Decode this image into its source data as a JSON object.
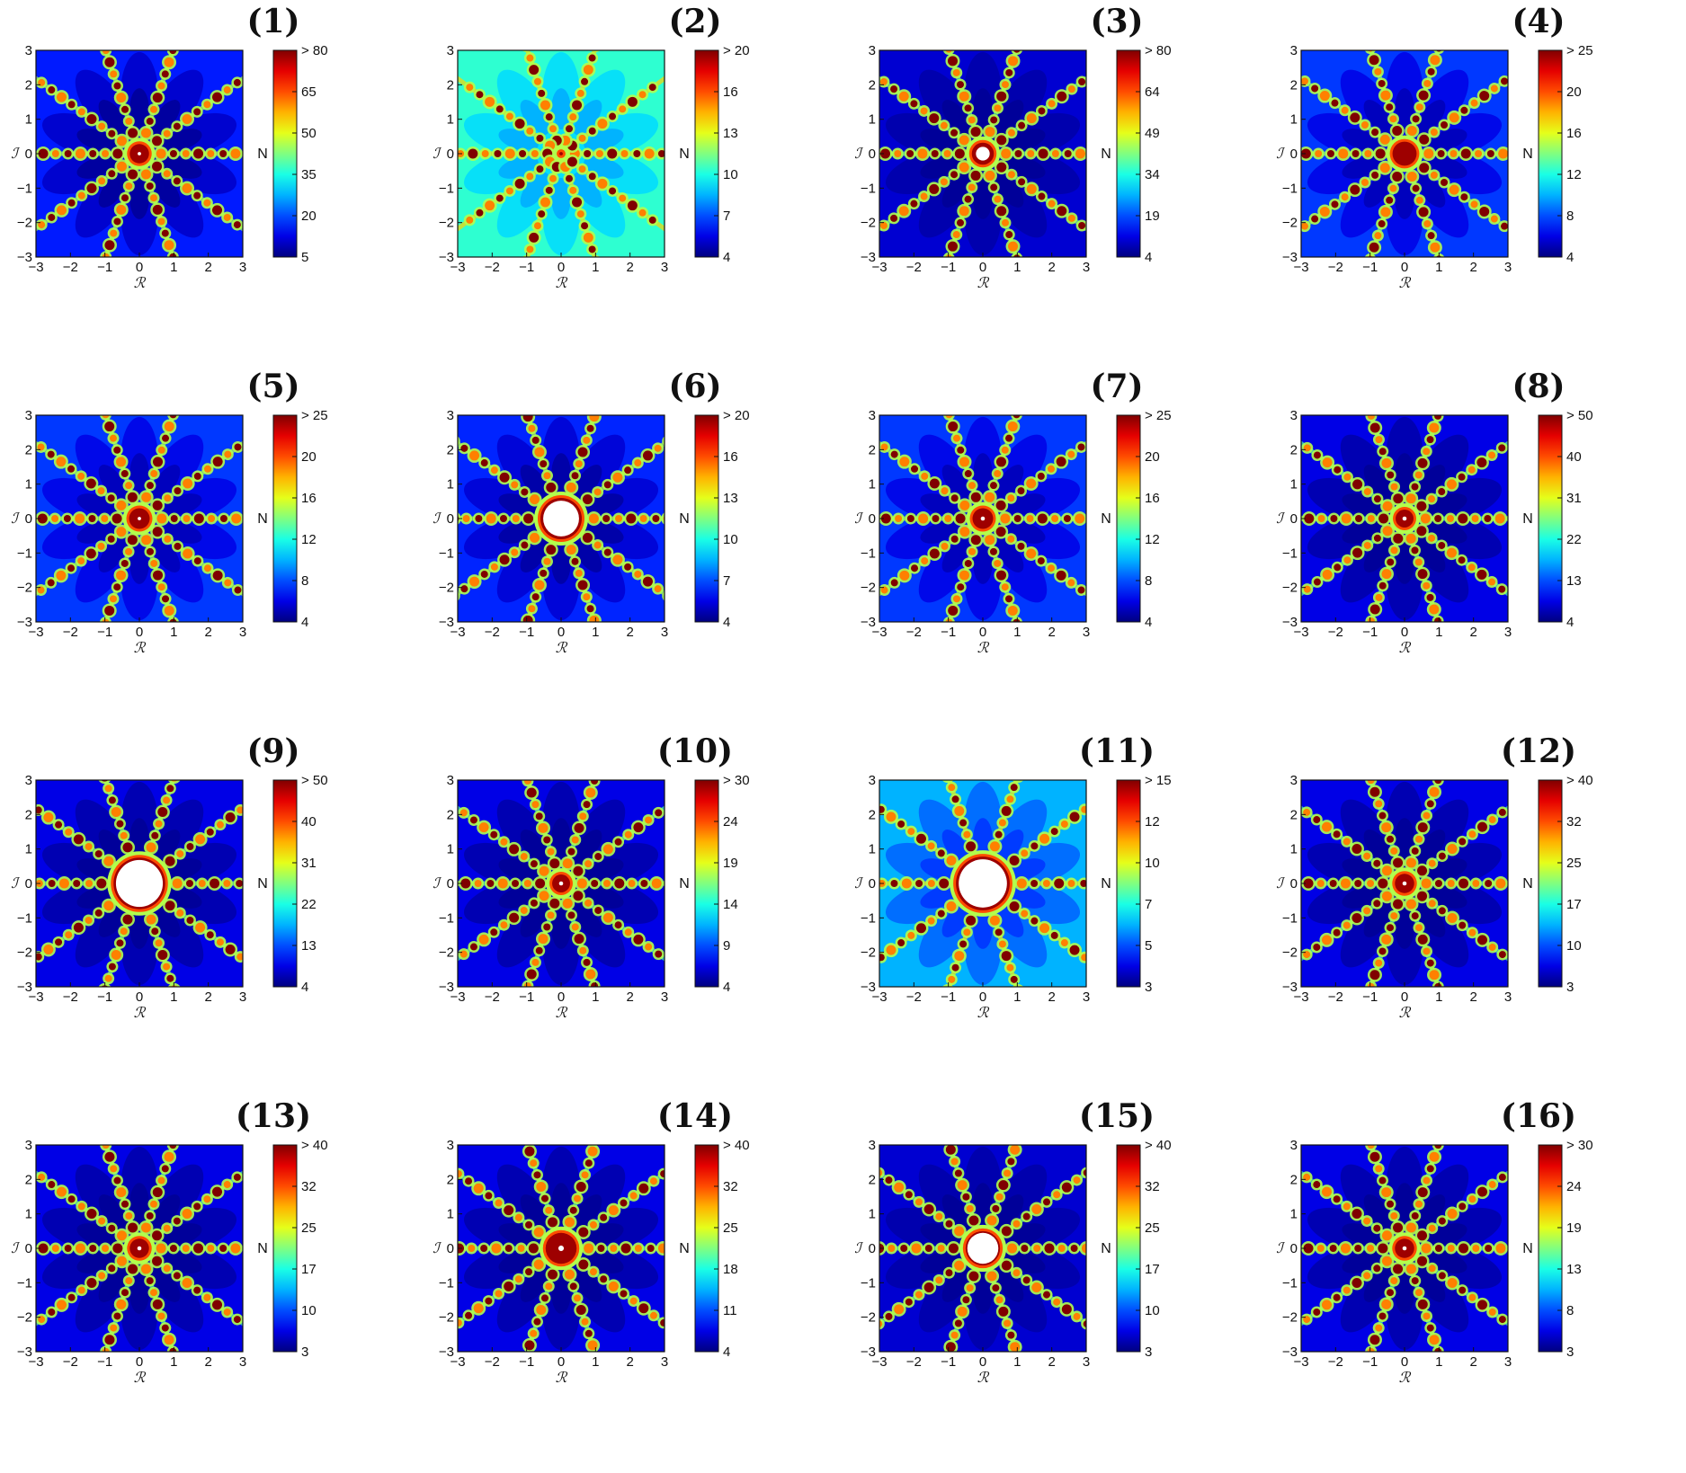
{
  "figure": {
    "xlabel": "ℛ",
    "ylabel": "ℐ",
    "colorbar_label": "N",
    "axis_ticks": [
      "−3",
      "−2",
      "−1",
      "0",
      "1",
      "2",
      "3"
    ]
  },
  "chart_data": [
    {
      "type": "heatmap",
      "title": "(1)",
      "xlim": [
        -3,
        3
      ],
      "ylim": [
        -3,
        3
      ],
      "colorbar": {
        "label": "N",
        "ticks": [
          "5",
          "20",
          "35",
          "50",
          "65",
          "> 80"
        ]
      },
      "background_level": 0.15,
      "arms": 10,
      "arm_intensity": 0.55,
      "center": {
        "radius": 0.28,
        "white_core": 0.05
      }
    },
    {
      "type": "heatmap",
      "title": "(2)",
      "xlim": [
        -3,
        3
      ],
      "ylim": [
        -3,
        3
      ],
      "colorbar": {
        "label": "N",
        "ticks": [
          "4",
          "7",
          "10",
          "13",
          "16",
          "> 20"
        ]
      },
      "background_level": 0.42,
      "arms": 10,
      "arm_intensity": 0.35,
      "center": {
        "radius": 0.05,
        "white_core": 0.0
      }
    },
    {
      "type": "heatmap",
      "title": "(3)",
      "xlim": [
        -3,
        3
      ],
      "ylim": [
        -3,
        3
      ],
      "colorbar": {
        "label": "N",
        "ticks": [
          "4",
          "19",
          "34",
          "49",
          "64",
          "> 80"
        ]
      },
      "background_level": 0.08,
      "arms": 10,
      "arm_intensity": 0.55,
      "center": {
        "radius": 0.32,
        "white_core": 0.2
      }
    },
    {
      "type": "heatmap",
      "title": "(4)",
      "xlim": [
        -3,
        3
      ],
      "ylim": [
        -3,
        3
      ],
      "colorbar": {
        "label": "N",
        "ticks": [
          "4",
          "8",
          "12",
          "16",
          "20",
          "> 25"
        ]
      },
      "background_level": 0.18,
      "arms": 10,
      "arm_intensity": 0.45,
      "center": {
        "radius": 0.35,
        "white_core": 0.0
      }
    },
    {
      "type": "heatmap",
      "title": "(5)",
      "xlim": [
        -3,
        3
      ],
      "ylim": [
        -3,
        3
      ],
      "colorbar": {
        "label": "N",
        "ticks": [
          "4",
          "8",
          "12",
          "16",
          "20",
          "> 25"
        ]
      },
      "background_level": 0.18,
      "arms": 10,
      "arm_intensity": 0.5,
      "center": {
        "radius": 0.3,
        "white_core": 0.05
      }
    },
    {
      "type": "heatmap",
      "title": "(6)",
      "xlim": [
        -3,
        3
      ],
      "ylim": [
        -3,
        3
      ],
      "colorbar": {
        "label": "N",
        "ticks": [
          "4",
          "7",
          "10",
          "13",
          "16",
          "> 20"
        ]
      },
      "background_level": 0.16,
      "arms": 10,
      "arm_intensity": 0.55,
      "center": {
        "radius": 0.6,
        "white_core": 0.52
      }
    },
    {
      "type": "heatmap",
      "title": "(7)",
      "xlim": [
        -3,
        3
      ],
      "ylim": [
        -3,
        3
      ],
      "colorbar": {
        "label": "N",
        "ticks": [
          "4",
          "8",
          "12",
          "16",
          "20",
          "> 25"
        ]
      },
      "background_level": 0.18,
      "arms": 10,
      "arm_intensity": 0.5,
      "center": {
        "radius": 0.3,
        "white_core": 0.06
      }
    },
    {
      "type": "heatmap",
      "title": "(8)",
      "xlim": [
        -3,
        3
      ],
      "ylim": [
        -3,
        3
      ],
      "colorbar": {
        "label": "N",
        "ticks": [
          "4",
          "13",
          "22",
          "31",
          "40",
          "> 50"
        ]
      },
      "background_level": 0.1,
      "arms": 10,
      "arm_intensity": 0.5,
      "center": {
        "radius": 0.26,
        "white_core": 0.06
      }
    },
    {
      "type": "heatmap",
      "title": "(9)",
      "xlim": [
        -3,
        3
      ],
      "ylim": [
        -3,
        3
      ],
      "colorbar": {
        "label": "N",
        "ticks": [
          "4",
          "13",
          "22",
          "31",
          "40",
          "> 50"
        ]
      },
      "background_level": 0.1,
      "arms": 10,
      "arm_intensity": 0.55,
      "center": {
        "radius": 0.75,
        "white_core": 0.68
      }
    },
    {
      "type": "heatmap",
      "title": "(10)",
      "xlim": [
        -3,
        3
      ],
      "ylim": [
        -3,
        3
      ],
      "colorbar": {
        "label": "N",
        "ticks": [
          "4",
          "9",
          "14",
          "19",
          "24",
          "> 30"
        ]
      },
      "background_level": 0.1,
      "arms": 10,
      "arm_intensity": 0.5,
      "center": {
        "radius": 0.26,
        "white_core": 0.06
      }
    },
    {
      "type": "heatmap",
      "title": "(11)",
      "xlim": [
        -3,
        3
      ],
      "ylim": [
        -3,
        3
      ],
      "colorbar": {
        "label": "N",
        "ticks": [
          "3",
          "5",
          "7",
          "10",
          "12",
          "> 15"
        ]
      },
      "background_level": 0.3,
      "arms": 10,
      "arm_intensity": 0.5,
      "center": {
        "radius": 0.78,
        "white_core": 0.7
      }
    },
    {
      "type": "heatmap",
      "title": "(12)",
      "xlim": [
        -3,
        3
      ],
      "ylim": [
        -3,
        3
      ],
      "colorbar": {
        "label": "N",
        "ticks": [
          "3",
          "10",
          "17",
          "25",
          "32",
          "> 40"
        ]
      },
      "background_level": 0.1,
      "arms": 10,
      "arm_intensity": 0.5,
      "center": {
        "radius": 0.28,
        "white_core": 0.06
      }
    },
    {
      "type": "heatmap",
      "title": "(13)",
      "xlim": [
        -3,
        3
      ],
      "ylim": [
        -3,
        3
      ],
      "colorbar": {
        "label": "N",
        "ticks": [
          "3",
          "10",
          "17",
          "25",
          "32",
          "> 40"
        ]
      },
      "background_level": 0.1,
      "arms": 10,
      "arm_intensity": 0.5,
      "center": {
        "radius": 0.28,
        "white_core": 0.06
      }
    },
    {
      "type": "heatmap",
      "title": "(14)",
      "xlim": [
        -3,
        3
      ],
      "ylim": [
        -3,
        3
      ],
      "colorbar": {
        "label": "N",
        "ticks": [
          "4",
          "11",
          "18",
          "25",
          "32",
          "> 40"
        ]
      },
      "background_level": 0.1,
      "arms": 10,
      "arm_intensity": 0.5,
      "center": {
        "radius": 0.45,
        "white_core": 0.08
      }
    },
    {
      "type": "heatmap",
      "title": "(15)",
      "xlim": [
        -3,
        3
      ],
      "ylim": [
        -3,
        3
      ],
      "colorbar": {
        "label": "N",
        "ticks": [
          "3",
          "10",
          "17",
          "25",
          "32",
          "> 40"
        ]
      },
      "background_level": 0.08,
      "arms": 10,
      "arm_intensity": 0.55,
      "center": {
        "radius": 0.5,
        "white_core": 0.45
      }
    },
    {
      "type": "heatmap",
      "title": "(16)",
      "xlim": [
        -3,
        3
      ],
      "ylim": [
        -3,
        3
      ],
      "colorbar": {
        "label": "N",
        "ticks": [
          "3",
          "8",
          "13",
          "19",
          "24",
          "> 30"
        ]
      },
      "background_level": 0.1,
      "arms": 10,
      "arm_intensity": 0.5,
      "center": {
        "radius": 0.28,
        "white_core": 0.06
      }
    }
  ]
}
